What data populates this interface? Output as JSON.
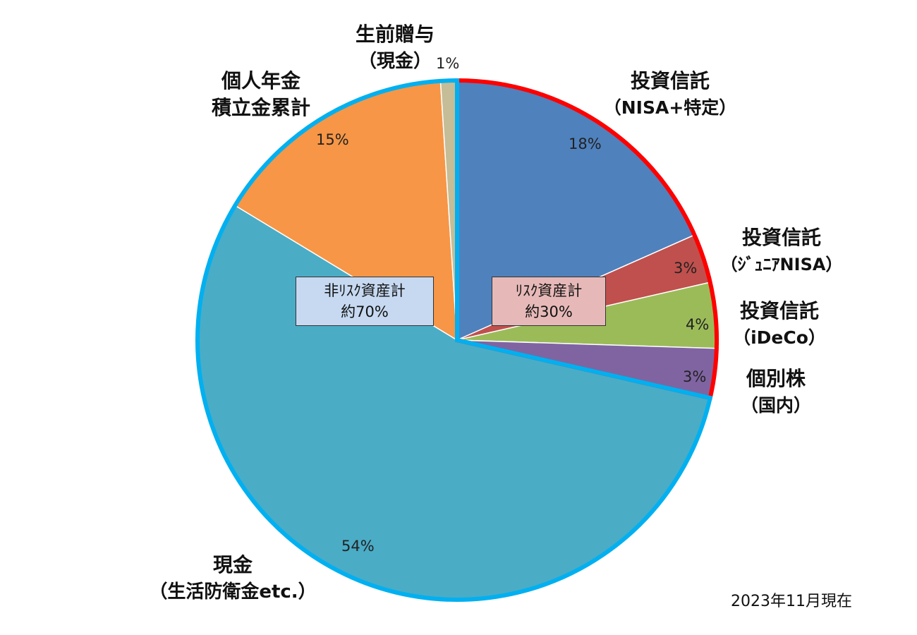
{
  "chart_data": {
    "type": "pie",
    "title": "",
    "start_angle": "12 o'clock",
    "direction": "clockwise",
    "slices": [
      {
        "label": "投資信託（NISA+特定）",
        "value": 18,
        "color": "#4F81BD"
      },
      {
        "label": "投資信託（ジュニアNISA）",
        "value": 3,
        "color": "#C0504D"
      },
      {
        "label": "投資信託（iDeCo）",
        "value": 4,
        "color": "#9BBB59"
      },
      {
        "label": "個別株（国内）",
        "value": 3,
        "color": "#8064A2"
      },
      {
        "label": "現金（生活防衛金etc.）",
        "value": 54,
        "color": "#4BACC6"
      },
      {
        "label": "個人年金積立金累計",
        "value": 15,
        "color": "#F79646"
      },
      {
        "label": "生前贈与（現金）",
        "value": 1,
        "color": "#C4BD97"
      }
    ],
    "groups": [
      {
        "label": "リスク資産計",
        "value_text": "約30%",
        "outline_color": "#FF0000",
        "box_color": "#E6B9B8",
        "members": [
          0,
          1,
          2,
          3
        ]
      },
      {
        "label": "非リスク資産計",
        "value_text": "約70%",
        "outline_color": "#00B0F0",
        "box_color": "#C6D9F1",
        "members": [
          4,
          5,
          6
        ]
      }
    ],
    "annotation": "2023年11月現在"
  },
  "labels": {
    "nisa_l1": "投資信託",
    "nisa_l2": "（NISA+特定）",
    "nisa_pct": "18%",
    "junior_l1": "投資信託",
    "junior_l2": "（ｼﾞｭﾆｱNISA）",
    "junior_pct": "3%",
    "ideco_l1": "投資信託",
    "ideco_l2": "（iDeCo）",
    "ideco_pct": "4%",
    "stock_l1": "個別株",
    "stock_l2": "（国内）",
    "stock_pct": "3%",
    "cash_l1": "現金",
    "cash_l2": "（生活防衛金etc.）",
    "cash_pct": "54%",
    "pension_l1": "個人年金",
    "pension_l2": "積立金累計",
    "pension_pct": "15%",
    "gift_l1": "生前贈与",
    "gift_l2": "（現金）",
    "gift_pct": "1%"
  },
  "boxes": {
    "nonrisk_l1": "非ﾘｽｸ資産計",
    "nonrisk_l2": "約70%",
    "risk_l1": "ﾘｽｸ資産計",
    "risk_l2": "約30%"
  },
  "date_note": "2023年11月現在"
}
